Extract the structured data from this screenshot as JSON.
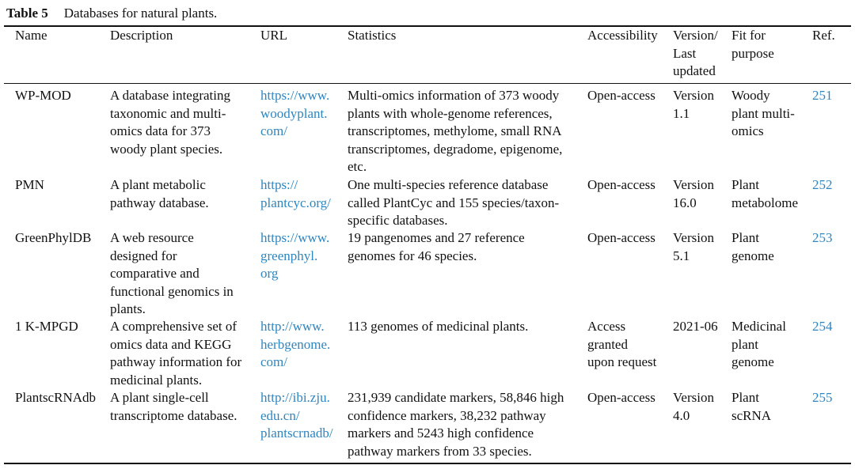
{
  "caption": {
    "label": "Table 5",
    "title": "Databases for natural plants."
  },
  "headers": {
    "name": "Name",
    "description": "Description",
    "url": "URL",
    "statistics": "Statistics",
    "accessibility": "Accessibility",
    "version": [
      "Version/",
      "Last",
      "updated"
    ],
    "fit": [
      "Fit for",
      "purpose"
    ],
    "ref": "Ref."
  },
  "rows": [
    {
      "name": "WP-MOD",
      "description": [
        "A database integrating",
        "taxonomic and multi-",
        "omics data for 373",
        "woody plant species."
      ],
      "url": [
        "https://www.",
        "woodyplant.",
        "com/"
      ],
      "statistics": [
        "Multi-omics information of 373 woody",
        "plants with whole-genome references,",
        "transcriptomes, methylome, small RNA",
        "transcriptomes, degradome, epigenome,",
        "etc."
      ],
      "accessibility": [
        "Open-access"
      ],
      "version": [
        "Version",
        "1.1"
      ],
      "fit": [
        "Woody",
        "plant multi-",
        "omics"
      ],
      "ref": "251"
    },
    {
      "name": "PMN",
      "description": [
        "A plant metabolic",
        "pathway database."
      ],
      "url": [
        "https://",
        "plantcyc.org/"
      ],
      "statistics": [
        "One multi-species reference database",
        "called PlantCyc and 155 species/taxon-",
        "specific databases."
      ],
      "accessibility": [
        "Open-access"
      ],
      "version": [
        "Version",
        "16.0"
      ],
      "fit": [
        "Plant",
        "metabolome"
      ],
      "ref": "252"
    },
    {
      "name": "GreenPhylDB",
      "description": [
        "A web resource",
        "designed for",
        "comparative and",
        "functional genomics in",
        "plants."
      ],
      "url": [
        "https://www.",
        "greenphyl.",
        "org"
      ],
      "statistics": [
        "19 pangenomes and 27 reference",
        "genomes for 46 species."
      ],
      "accessibility": [
        "Open-access"
      ],
      "version": [
        "Version",
        "5.1"
      ],
      "fit": [
        "Plant",
        "genome"
      ],
      "ref": "253"
    },
    {
      "name": "1 K-MPGD",
      "description": [
        "A comprehensive set of",
        "omics data and KEGG",
        "pathway information for",
        "medicinal plants."
      ],
      "url": [
        "http://www.",
        "herbgenome.",
        "com/"
      ],
      "statistics": [
        "113 genomes of medicinal plants."
      ],
      "accessibility": [
        "Access",
        "granted",
        "upon request"
      ],
      "version": [
        "2021-06"
      ],
      "fit": [
        "Medicinal",
        "plant",
        "genome"
      ],
      "ref": "254"
    },
    {
      "name": "PlantscRNAdb",
      "description": [
        "A plant single-cell",
        "transcriptome database."
      ],
      "url": [
        "http://ibi.zju.",
        "edu.cn/",
        "plantscrnadb/"
      ],
      "statistics": [
        "231,939 candidate markers, 58,846 high",
        "confidence markers, 38,232 pathway",
        "markers and 5243 high confidence",
        "pathway markers from 33 species."
      ],
      "accessibility": [
        "Open-access"
      ],
      "version": [
        "Version",
        "4.0"
      ],
      "fit": [
        "Plant",
        "scRNA"
      ],
      "ref": "255"
    }
  ]
}
